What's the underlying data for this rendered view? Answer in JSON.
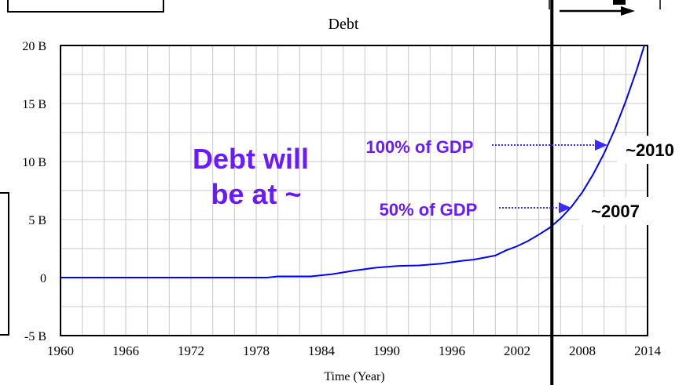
{
  "chart_data": {
    "type": "line",
    "title": "Debt",
    "xlabel": "Time (Year)",
    "ylabel": "",
    "xlim": [
      1960,
      2014
    ],
    "ylim": [
      -5,
      20
    ],
    "x_ticks": [
      1960,
      1966,
      1972,
      1978,
      1984,
      1990,
      1996,
      2002,
      2008,
      2014
    ],
    "x_tick_labels": [
      "1960",
      "1966",
      "1972",
      "1978",
      "1984",
      "1990",
      "1996",
      "2002",
      "2008",
      "2014"
    ],
    "y_ticks": [
      -5,
      0,
      5,
      10,
      15,
      20
    ],
    "y_tick_labels": [
      "-5 B",
      "0",
      "5 B",
      "10 B",
      "15 B",
      "20 B"
    ],
    "grid": true,
    "series": [
      {
        "color": "#0000ff",
        "x": [
          1960,
          1965,
          1970,
          1975,
          1979,
          1980,
          1983,
          1985,
          1987,
          1989,
          1991,
          1993,
          1995,
          1997,
          1998,
          2000,
          2001,
          2002,
          2003,
          2004,
          2005,
          2006,
          2007,
          2008,
          2009,
          2010,
          2011,
          2012,
          2013,
          2013.7
        ],
        "y": [
          0,
          0,
          0,
          0,
          0,
          0.1,
          0.1,
          0.3,
          0.6,
          0.85,
          1.0,
          1.05,
          1.2,
          1.45,
          1.55,
          1.9,
          2.35,
          2.7,
          3.15,
          3.7,
          4.3,
          5.1,
          6.1,
          7.35,
          8.9,
          10.7,
          12.8,
          15.2,
          17.9,
          20
        ]
      }
    ],
    "vline_x": 2005.2,
    "annotations": {
      "big_text_line1": "Debt will",
      "big_text_line2": "be at ~",
      "gdp100_label": "100% of GDP",
      "gdp100_year": "~2010",
      "gdp50_label": "50% of GDP",
      "gdp50_year": "~2007"
    },
    "colors": {
      "line": "#0000ff",
      "annotation": "#6a1aff",
      "arrow": "#3a2bff",
      "frame": "#000000",
      "grid": "#c8c8c8"
    }
  }
}
